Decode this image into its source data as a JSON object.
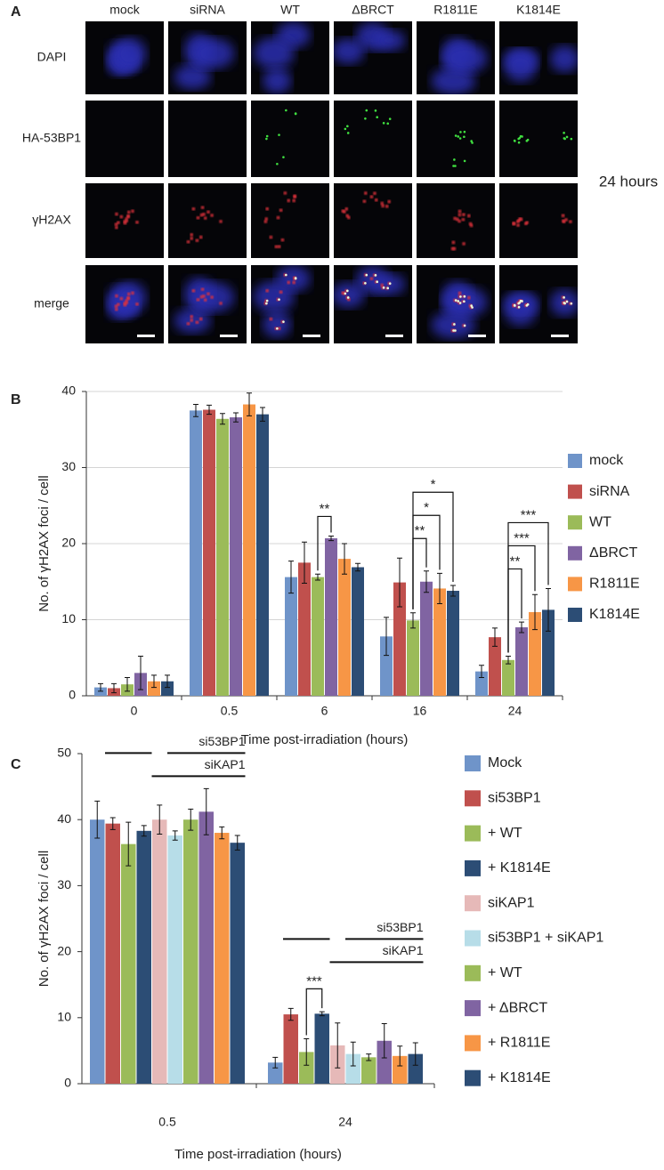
{
  "panel_a": {
    "letter": "A",
    "columns": [
      "mock",
      "siRNA",
      "WT",
      "ΔBRCT",
      "R1811E",
      "K1814E"
    ],
    "rows": [
      "DAPI",
      "HA-53BP1",
      "γH2AX",
      "merge"
    ],
    "time_label": "24 hours"
  },
  "chart_data": [
    {
      "type": "bar",
      "panel": "B",
      "ylabel": "No. of γH2AX foci / cell",
      "xlabel": "Time post-irradiation (hours)",
      "categories": [
        "0",
        "0.5",
        "6",
        "16",
        "24"
      ],
      "ylim": [
        0,
        40
      ],
      "yticks": [
        0,
        10,
        20,
        30,
        40
      ],
      "grid": true,
      "legend": "right",
      "series": [
        {
          "name": "mock",
          "color": "#6f94c9",
          "values": [
            1.1,
            37.5,
            15.6,
            7.8,
            3.2
          ],
          "errors": [
            0.5,
            0.8,
            2.1,
            2.5,
            0.8
          ]
        },
        {
          "name": "siRNA",
          "color": "#c0504d",
          "values": [
            1.0,
            37.6,
            17.5,
            14.9,
            7.7
          ],
          "errors": [
            0.6,
            0.6,
            2.7,
            3.2,
            1.2
          ]
        },
        {
          "name": "WT",
          "color": "#9bbb59",
          "values": [
            1.5,
            36.4,
            15.6,
            9.9,
            4.7
          ],
          "errors": [
            0.9,
            0.7,
            0.4,
            1.0,
            0.5
          ]
        },
        {
          "name": "ΔBRCT",
          "color": "#8064a2",
          "values": [
            3.0,
            36.6,
            20.7,
            15.0,
            9.0
          ],
          "errors": [
            2.2,
            0.6,
            0.3,
            1.4,
            0.7
          ]
        },
        {
          "name": "R1811E",
          "color": "#f79646",
          "values": [
            1.9,
            38.3,
            18.0,
            14.1,
            11.0
          ],
          "errors": [
            0.8,
            1.5,
            2.0,
            2.0,
            2.3
          ]
        },
        {
          "name": "K1814E",
          "color": "#2c4d75",
          "values": [
            1.9,
            37.0,
            16.9,
            13.8,
            11.3
          ],
          "errors": [
            0.8,
            0.9,
            0.5,
            0.7,
            2.8
          ]
        }
      ],
      "significance": [
        {
          "label": "**",
          "category": 2,
          "series": [
            2,
            3
          ]
        },
        {
          "label": "**",
          "category": 3,
          "series": [
            2,
            3
          ]
        },
        {
          "label": "*",
          "category": 3,
          "series": [
            2,
            4
          ]
        },
        {
          "label": "*",
          "category": 3,
          "series": [
            2,
            5
          ]
        },
        {
          "label": "**",
          "category": 4,
          "series": [
            2,
            3
          ]
        },
        {
          "label": "***",
          "category": 4,
          "series": [
            2,
            4
          ]
        },
        {
          "label": "***",
          "category": 4,
          "series": [
            2,
            5
          ]
        }
      ]
    },
    {
      "type": "bar",
      "panel": "C",
      "ylabel": "No. of γH2AX foci / cell",
      "xlabel": "Time post-irradiation (hours)",
      "categories": [
        "0.5",
        "24"
      ],
      "ylim": [
        0,
        50
      ],
      "yticks": [
        0,
        10,
        20,
        30,
        40,
        50
      ],
      "grid": false,
      "legend": "right",
      "series": [
        {
          "name": "Mock",
          "color": "#6f94c9",
          "values": [
            40.0,
            3.2
          ],
          "errors": [
            2.8,
            0.8
          ]
        },
        {
          "name": "si53BP1",
          "color": "#c0504d",
          "values": [
            39.4,
            10.5
          ],
          "errors": [
            0.9,
            0.9
          ]
        },
        {
          "name": "+ WT",
          "color": "#9bbb59",
          "values": [
            36.3,
            4.8
          ],
          "errors": [
            3.3,
            2.0
          ]
        },
        {
          "name": "+ K1814E",
          "color": "#2c4d75",
          "values": [
            38.3,
            10.6
          ],
          "errors": [
            0.8,
            0.3
          ]
        },
        {
          "name": "siKAP1",
          "color": "#e6b9b8",
          "values": [
            40.0,
            5.8
          ],
          "errors": [
            2.2,
            3.4
          ]
        },
        {
          "name": "si53BP1 + siKAP1",
          "color": "#b7dde8",
          "values": [
            37.6,
            4.5
          ],
          "errors": [
            0.7,
            1.8
          ]
        },
        {
          "name": "+ WT",
          "color": "#9bbb59",
          "values": [
            40.0,
            4.0
          ],
          "errors": [
            1.6,
            0.5
          ]
        },
        {
          "name": "+ ΔBRCT",
          "color": "#8064a2",
          "values": [
            41.2,
            6.5
          ],
          "errors": [
            3.5,
            2.6
          ]
        },
        {
          "name": "+ R1811E",
          "color": "#f79646",
          "values": [
            38.0,
            4.2
          ],
          "errors": [
            0.9,
            1.5
          ]
        },
        {
          "name": "+ K1814E",
          "color": "#2c4d75",
          "values": [
            36.5,
            4.5
          ],
          "errors": [
            1.1,
            1.7
          ]
        }
      ],
      "significance": [
        {
          "label": "***",
          "category": 1,
          "series": [
            2,
            3
          ]
        }
      ],
      "treatments": [
        {
          "label": "si53BP1",
          "spans": [
            [
              1,
              3
            ],
            [
              5,
              9
            ]
          ]
        },
        {
          "label": "siKAP1",
          "spans": [
            [
              4,
              9
            ]
          ]
        }
      ]
    }
  ]
}
